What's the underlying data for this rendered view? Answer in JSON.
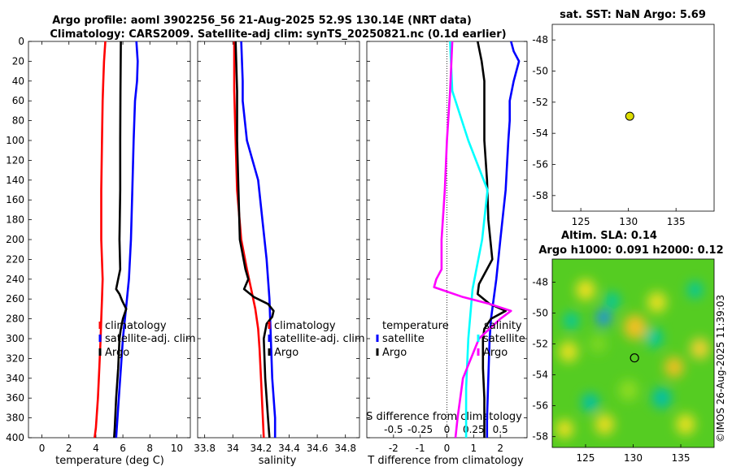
{
  "title": {
    "line1": "Argo profile: aoml 3902256_56 21-Aug-2025 52.9S 130.14E (NRT data)",
    "line2": "Climatology: CARS2009. Satellite-adj clim: synTS_20250821.nc (0.1d earlier)"
  },
  "watermark": "©IMOS 26-Aug-2025 11:39:03",
  "colors": {
    "climatology": "#ff0000",
    "satellite": "#0000ff",
    "argo": "#000000",
    "temp_diff": "#00ffff",
    "sal_diff": "#ff00ff"
  },
  "chart_data": [
    {
      "type": "line",
      "name": "temperature",
      "xlabel": "temperature (deg C)",
      "ylabel": "",
      "xlim": [
        -1,
        11
      ],
      "ylim": [
        400,
        0
      ],
      "xticks": [
        "0",
        "2",
        "4",
        "6",
        "8",
        "10"
      ],
      "xtick_values": [
        0,
        2,
        4,
        6,
        8,
        10
      ],
      "yticks": [
        "0",
        "20",
        "40",
        "60",
        "80",
        "100",
        "120",
        "140",
        "160",
        "180",
        "200",
        "220",
        "240",
        "260",
        "280",
        "300",
        "320",
        "340",
        "360",
        "380",
        "400"
      ],
      "ytick_values": [
        0,
        20,
        40,
        60,
        80,
        100,
        120,
        140,
        160,
        180,
        200,
        220,
        240,
        260,
        280,
        300,
        320,
        340,
        360,
        380,
        400
      ],
      "legend": [
        "climatology",
        "satellite-adj. clim",
        "Argo"
      ],
      "series": [
        {
          "name": "climatology",
          "color": "#ff0000",
          "depth": [
            0,
            20,
            40,
            60,
            100,
            150,
            200,
            240,
            260,
            280,
            300,
            330,
            360,
            390,
            400
          ],
          "values": [
            4.7,
            4.6,
            4.55,
            4.5,
            4.45,
            4.4,
            4.4,
            4.5,
            4.45,
            4.4,
            4.35,
            4.25,
            4.15,
            4.0,
            3.9
          ]
        },
        {
          "name": "satellite-adj. clim",
          "color": "#0000ff",
          "depth": [
            0,
            20,
            40,
            60,
            100,
            150,
            200,
            240,
            260,
            280,
            300,
            330,
            360,
            390,
            400
          ],
          "values": [
            7.0,
            7.1,
            7.05,
            6.9,
            6.8,
            6.7,
            6.6,
            6.45,
            6.3,
            6.15,
            6.0,
            5.85,
            5.7,
            5.55,
            5.5
          ]
        },
        {
          "name": "Argo",
          "color": "#000000",
          "depth": [
            0,
            50,
            100,
            150,
            200,
            230,
            240,
            250,
            255,
            262,
            270,
            280,
            290,
            300,
            330,
            360,
            390,
            400
          ],
          "values": [
            5.85,
            5.82,
            5.8,
            5.8,
            5.75,
            5.8,
            5.65,
            5.5,
            5.75,
            5.95,
            6.25,
            6.0,
            5.85,
            5.75,
            5.65,
            5.5,
            5.4,
            5.35
          ]
        }
      ]
    },
    {
      "type": "line",
      "name": "salinity",
      "xlabel": "salinity",
      "ylabel": "",
      "xlim": [
        33.75,
        34.9
      ],
      "ylim": [
        400,
        0
      ],
      "xticks": [
        "33.8",
        "34",
        "34.2",
        "34.4",
        "34.6",
        "34.8"
      ],
      "xtick_values": [
        33.8,
        34.0,
        34.2,
        34.4,
        34.6,
        34.8
      ],
      "legend": [
        "climatology",
        "satellite-adj. clim",
        "Argo"
      ],
      "series": [
        {
          "name": "climatology",
          "color": "#ff0000",
          "depth": [
            0,
            50,
            100,
            150,
            200,
            230,
            250,
            270,
            290,
            310,
            340,
            370,
            400
          ],
          "values": [
            34.01,
            34.01,
            34.02,
            34.03,
            34.06,
            34.1,
            34.13,
            34.16,
            34.18,
            34.19,
            34.2,
            34.21,
            34.22
          ]
        },
        {
          "name": "satellite-adj. clim",
          "color": "#0000ff",
          "depth": [
            0,
            40,
            60,
            100,
            140,
            180,
            220,
            260,
            300,
            340,
            380,
            400
          ],
          "values": [
            34.06,
            34.07,
            34.07,
            34.1,
            34.18,
            34.21,
            34.24,
            34.26,
            34.27,
            34.28,
            34.3,
            34.3
          ]
        },
        {
          "name": "Argo",
          "color": "#000000",
          "depth": [
            0,
            50,
            100,
            150,
            200,
            230,
            240,
            250,
            258,
            265,
            272,
            278,
            285,
            300,
            340,
            380,
            400
          ],
          "values": [
            34.02,
            34.03,
            34.03,
            34.04,
            34.05,
            34.09,
            34.11,
            34.08,
            34.15,
            34.25,
            34.29,
            34.28,
            34.24,
            34.22,
            34.23,
            34.25,
            34.26
          ]
        }
      ]
    },
    {
      "type": "line",
      "name": "difference",
      "xlabel": "T difference from climatology",
      "top_label": "S difference from climatology",
      "ylabel": "",
      "xlim": [
        -3,
        3
      ],
      "ylim": [
        400,
        0
      ],
      "xticks": [
        "-2",
        "-1",
        "0",
        "1",
        "2"
      ],
      "xtick_values": [
        -2,
        -1,
        0,
        1,
        2
      ],
      "sticks": [
        "-0.5",
        "-0.25",
        "0",
        "0.25",
        "0.5"
      ],
      "legend_temperature_title": "temperature",
      "legend_salinity_title": "salinity",
      "legend_temperature": [
        "satellite",
        "Argo"
      ],
      "legend_salinity": [
        "satellite",
        "Argo"
      ],
      "series": [
        {
          "name": "T satellite - clim",
          "color": "#0000ff",
          "depth": [
            0,
            10,
            20,
            40,
            60,
            80,
            100,
            150,
            200,
            240,
            280,
            300,
            340,
            380,
            400
          ],
          "values": [
            2.4,
            2.5,
            2.7,
            2.5,
            2.35,
            2.35,
            2.3,
            2.2,
            2.0,
            1.85,
            1.65,
            1.6,
            1.55,
            1.5,
            1.5
          ]
        },
        {
          "name": "T Argo - clim",
          "color": "#000000",
          "depth": [
            0,
            20,
            40,
            60,
            80,
            100,
            140,
            180,
            220,
            245,
            255,
            265,
            272,
            280,
            290,
            300,
            330,
            360,
            400
          ],
          "values": [
            1.15,
            1.3,
            1.4,
            1.4,
            1.4,
            1.4,
            1.5,
            1.55,
            1.7,
            1.2,
            1.15,
            1.6,
            2.2,
            1.65,
            1.4,
            1.35,
            1.35,
            1.4,
            1.4
          ]
        },
        {
          "name": "S satellite - clim",
          "color": "#00ffff",
          "depth": [
            0,
            50,
            100,
            150,
            200,
            250,
            300,
            350,
            400
          ],
          "values": [
            0.03,
            0.05,
            0.2,
            0.38,
            0.33,
            0.24,
            0.2,
            0.18,
            0.18
          ]
        },
        {
          "name": "S Argo - clim",
          "color": "#ff00ff",
          "depth": [
            0,
            50,
            100,
            150,
            200,
            230,
            240,
            248,
            258,
            265,
            272,
            280,
            300,
            340,
            380,
            400
          ],
          "values": [
            0.05,
            0.03,
            0.0,
            -0.02,
            -0.05,
            -0.05,
            -0.1,
            -0.12,
            0.15,
            0.4,
            0.6,
            0.5,
            0.3,
            0.15,
            0.1,
            0.08
          ]
        }
      ]
    },
    {
      "type": "scatter",
      "name": "sst-map",
      "title": "sat. SST: NaN Argo: 5.69",
      "xlim": [
        122,
        139
      ],
      "ylim": [
        -59,
        -47
      ],
      "xticks": [
        "125",
        "130",
        "135"
      ],
      "xtick_values": [
        125,
        130,
        135
      ],
      "yticks": [
        "-48",
        "-50",
        "-52",
        "-54",
        "-56",
        "-58"
      ],
      "ytick_values": [
        -48,
        -50,
        -52,
        -54,
        -56,
        -58
      ],
      "point": {
        "lon": 130.14,
        "lat": -52.9,
        "color": "#dddd00"
      }
    },
    {
      "type": "heatmap",
      "name": "sla-map",
      "title1": "Altim. SLA: 0.14",
      "title2": "Argo h1000: 0.091 h2000: 0.12",
      "xlim": [
        121.5,
        138.5
      ],
      "ylim": [
        -58.7,
        -46.5
      ],
      "xticks": [
        "125",
        "130",
        "135"
      ],
      "xtick_values": [
        125,
        130,
        135
      ],
      "yticks": [
        "-48",
        "-50",
        "-52",
        "-54",
        "-56",
        "-58"
      ],
      "ytick_values": [
        -48,
        -50,
        -52,
        -54,
        -56,
        -58
      ],
      "point": {
        "lon": 130.14,
        "lat": -52.9
      },
      "background": "#55cc22",
      "blobs": [
        {
          "lon": 125.0,
          "lat": -48.5,
          "color": "#f0e020",
          "r": 1.0
        },
        {
          "lon": 123.2,
          "lat": -52.5,
          "color": "#e6e020",
          "r": 1.0
        },
        {
          "lon": 123.5,
          "lat": -50.5,
          "color": "#00c8a0",
          "r": 0.8
        },
        {
          "lon": 126.3,
          "lat": -52.0,
          "color": "#7ed820",
          "r": 0.9
        },
        {
          "lon": 126.9,
          "lat": -50.3,
          "color": "#2090e8",
          "r": 0.8
        },
        {
          "lon": 127.8,
          "lat": -49.2,
          "color": "#00c8a0",
          "r": 0.8
        },
        {
          "lon": 130.2,
          "lat": -50.9,
          "color": "#f0c020",
          "r": 1.2
        },
        {
          "lon": 132.5,
          "lat": -49.3,
          "color": "#e8e020",
          "r": 1.0
        },
        {
          "lon": 132.2,
          "lat": -51.6,
          "color": "#00c8a0",
          "r": 0.9
        },
        {
          "lon": 134.3,
          "lat": -53.5,
          "color": "#f0c020",
          "r": 1.0
        },
        {
          "lon": 137.0,
          "lat": -52.3,
          "color": "#f0d030",
          "r": 1.0
        },
        {
          "lon": 136.5,
          "lat": -48.5,
          "color": "#00c8a0",
          "r": 0.8
        },
        {
          "lon": 133.0,
          "lat": -55.5,
          "color": "#00c0a8",
          "r": 1.0
        },
        {
          "lon": 127.0,
          "lat": -57.2,
          "color": "#eadd20",
          "r": 1.0
        },
        {
          "lon": 125.5,
          "lat": -55.8,
          "color": "#00c0a8",
          "r": 0.9
        },
        {
          "lon": 135.5,
          "lat": -57.2,
          "color": "#e8e020",
          "r": 1.0
        },
        {
          "lon": 122.8,
          "lat": -57.5,
          "color": "#f0e020",
          "r": 0.9
        },
        {
          "lon": 129.5,
          "lat": -55.0,
          "color": "#8edc20",
          "r": 1.0
        }
      ]
    }
  ]
}
